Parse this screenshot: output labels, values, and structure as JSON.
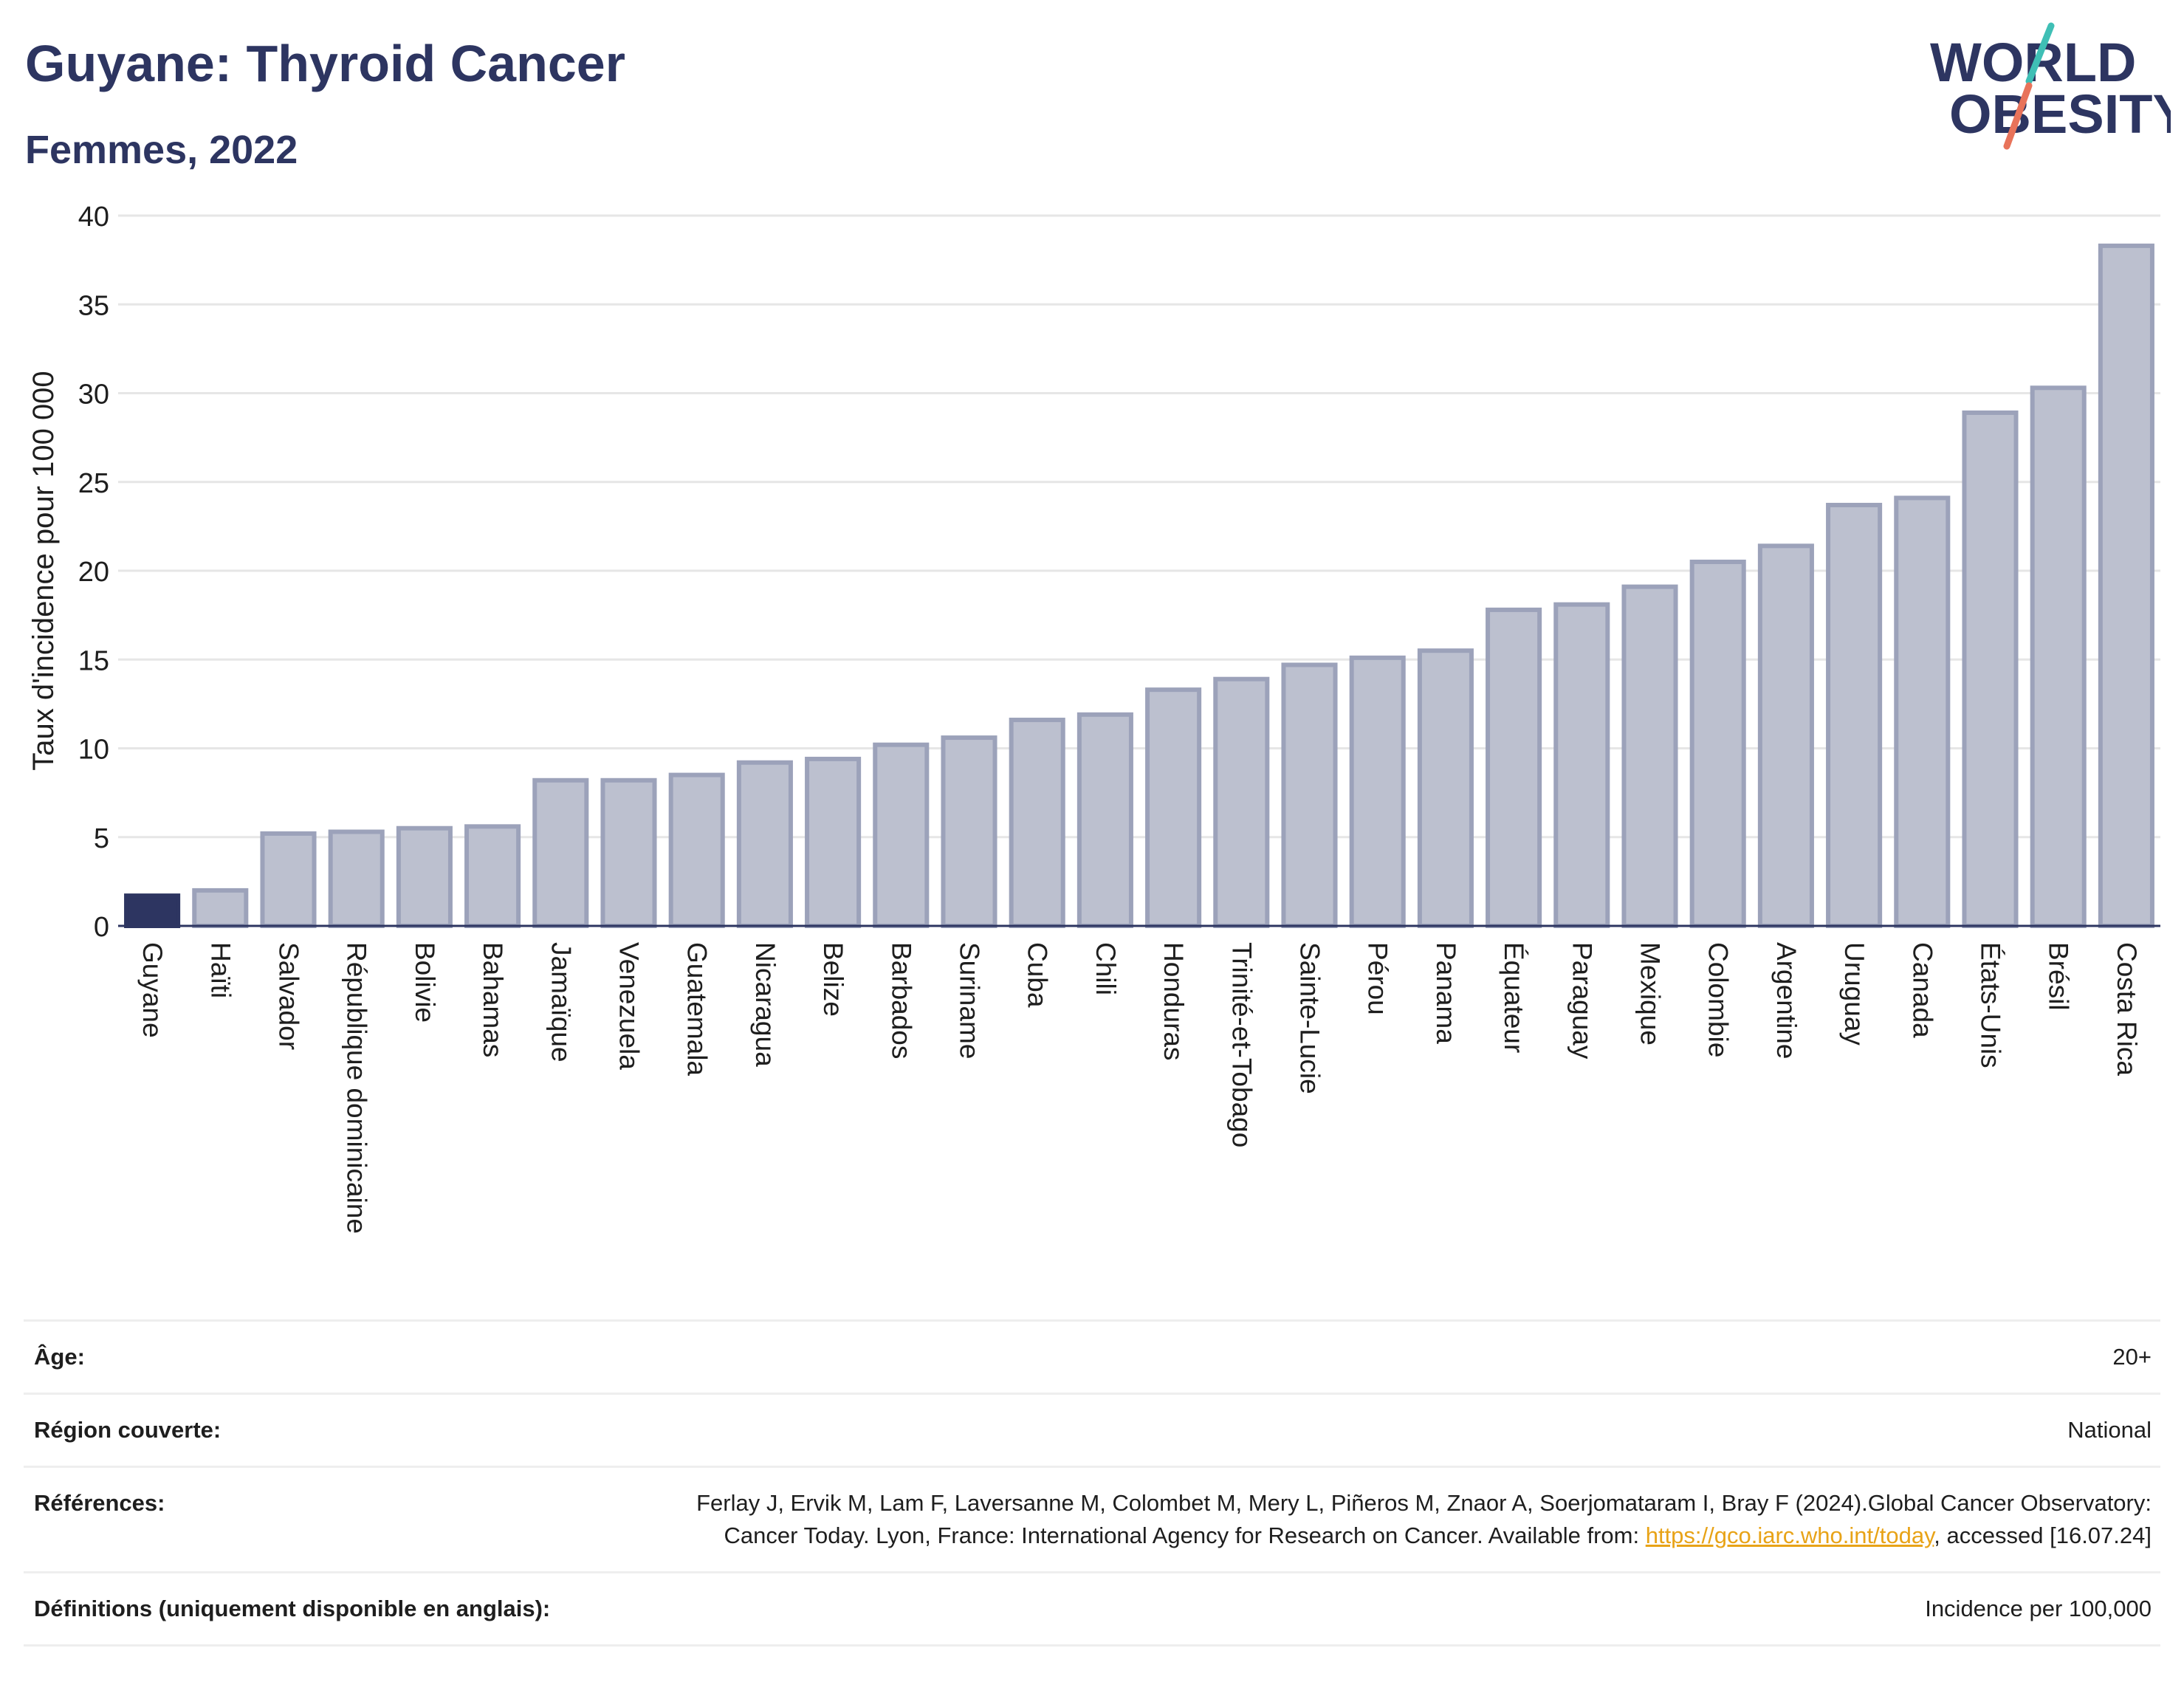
{
  "header": {
    "title": "Guyane: Thyroid Cancer",
    "subtitle": "Femmes, 2022"
  },
  "logo": {
    "line1": "WORLD",
    "line2": "OBESITY",
    "accent_colors": [
      "#3fbfb5",
      "#e8735a"
    ]
  },
  "colors": {
    "highlight": "#2d3561",
    "bar_fill": "#bcc0cf",
    "bar_stroke": "#9ca2ba",
    "grid": "#e6e6e6"
  },
  "chart_data": {
    "type": "bar",
    "ylabel": "Taux d'incidence pour 100 000",
    "ylim": [
      0,
      40
    ],
    "yticks": [
      0,
      5,
      10,
      15,
      20,
      25,
      30,
      35,
      40
    ],
    "highlight": "Guyane",
    "categories": [
      "Guyane",
      "Haïti",
      "Salvador",
      "République dominicaine",
      "Bolivie",
      "Bahamas",
      "Jamaïque",
      "Venezuela",
      "Guatemala",
      "Nicaragua",
      "Belize",
      "Barbados",
      "Suriname",
      "Cuba",
      "Chili",
      "Honduras",
      "Trinité-et-Tobago",
      "Sainte-Lucie",
      "Pérou",
      "Panama",
      "Équateur",
      "Paraguay",
      "Mexique",
      "Colombie",
      "Argentine",
      "Uruguay",
      "Canada",
      "États-Unis",
      "Brésil",
      "Costa Rica"
    ],
    "values": [
      1.7,
      2.0,
      5.2,
      5.3,
      5.5,
      5.6,
      8.2,
      8.2,
      8.5,
      9.2,
      9.4,
      10.2,
      10.6,
      11.6,
      11.9,
      13.3,
      13.9,
      14.7,
      15.1,
      15.5,
      17.8,
      18.1,
      19.1,
      20.5,
      21.4,
      23.7,
      24.1,
      28.9,
      30.3,
      38.3
    ]
  },
  "info": {
    "age": {
      "label": "Âge:",
      "value": "20+"
    },
    "region": {
      "label": "Région couverte:",
      "value": "National"
    },
    "references": {
      "label": "Références:",
      "text_before": "Ferlay J, Ervik M, Lam F, Laversanne M, Colombet M, Mery L, Piñeros M, Znaor A, Soerjomataram I, Bray F (2024).Global Cancer Observatory: Cancer Today. Lyon, France: International Agency for Research on Cancer. Available from: ",
      "link": "https://gco.iarc.who.int/today",
      "text_after": ", accessed [16.07.24]"
    },
    "definitions": {
      "label": "Définitions (uniquement disponible en anglais):",
      "value": "Incidence per 100,000"
    }
  }
}
